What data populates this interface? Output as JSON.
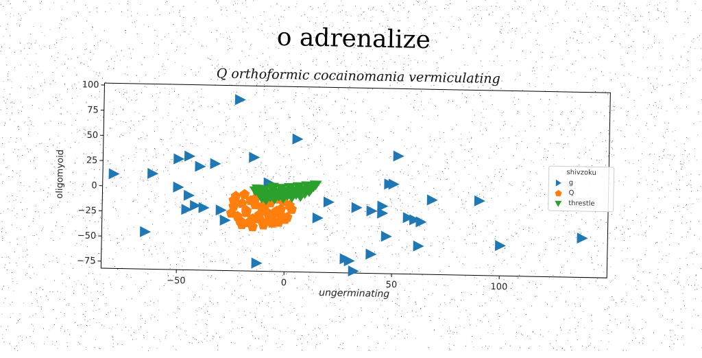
{
  "figure": {
    "suptitle": "o adrenalize"
  },
  "chart_data": {
    "type": "scatter",
    "title": "Q orthoformic cocainomania vermiculating",
    "xlabel": "ungerminating",
    "ylabel": "oligomyoid",
    "xlim": [
      -85,
      150
    ],
    "ylim": [
      -82,
      102
    ],
    "xticks": [
      -50,
      0,
      50,
      100
    ],
    "yticks": [
      100,
      75,
      50,
      25,
      0,
      -25,
      -50,
      -75
    ],
    "grid": false,
    "legend": {
      "title": "shivzoku",
      "position": "right",
      "entries": [
        {
          "label": "g",
          "color": "#1f77b4",
          "marker": "triangle-right"
        },
        {
          "label": "Q",
          "color": "#ff7f0e",
          "marker": "pentagon"
        },
        {
          "label": "threstle",
          "color": "#2ca02c",
          "marker": "triangle-down"
        }
      ]
    },
    "series": [
      {
        "name": "g",
        "color": "#1f77b4",
        "marker": "triangle-right",
        "x": [
          -22,
          5,
          -80,
          -62,
          -50,
          -45,
          -40,
          -33,
          -15,
          -8,
          -50,
          -45,
          -46,
          -42,
          -38,
          -30,
          -28,
          -65,
          -13,
          15,
          20,
          33,
          40,
          45,
          47,
          48,
          50,
          52,
          57,
          60,
          63,
          68,
          90,
          100,
          138,
          28,
          32,
          45,
          62,
          40,
          30
        ],
        "y": [
          88,
          50,
          12,
          13,
          28,
          31,
          21,
          24,
          31,
          6,
          0,
          -8,
          -22,
          -18,
          -20,
          -22,
          -32,
          -45,
          -74,
          -28,
          -12,
          -17,
          -20,
          -22,
          -45,
          7,
          7,
          35,
          -26,
          -28,
          -30,
          -8,
          -8,
          -52,
          -43,
          -68,
          -80,
          -15,
          -54,
          -63,
          -70
        ]
      },
      {
        "name": "Q",
        "color": "#ff7f0e",
        "marker": "pentagon",
        "x": [
          -25,
          -22,
          -18,
          -15,
          -12,
          -10,
          -8,
          -6,
          -4,
          -2,
          0,
          3,
          -24,
          -20,
          -16,
          -14,
          -11,
          -7,
          -4,
          -1,
          2,
          -23,
          -19,
          -13,
          -9,
          -5,
          -21,
          -17,
          -12,
          -8,
          -3,
          1,
          -20,
          -15,
          -6,
          -18,
          -10,
          -2,
          -14,
          -24
        ],
        "y": [
          -25,
          -28,
          -22,
          -30,
          -26,
          -20,
          -24,
          -28,
          -22,
          -26,
          -30,
          -20,
          -18,
          -15,
          -12,
          -16,
          -18,
          -14,
          -10,
          -12,
          -16,
          -8,
          -6,
          -4,
          -10,
          -8,
          -32,
          -34,
          -30,
          -32,
          -33,
          -28,
          -36,
          -38,
          -34,
          -24,
          -36,
          -20,
          -10,
          -12
        ]
      },
      {
        "name": "threstle",
        "color": "#2ca02c",
        "marker": "triangle-down",
        "x": [
          -14,
          -10,
          -6,
          -2,
          2,
          6,
          10,
          14,
          -12,
          -8,
          -4,
          0,
          4,
          8,
          12,
          -11,
          -7,
          -3,
          1,
          5,
          9,
          -9,
          -5,
          -1,
          3,
          7,
          11,
          13,
          -13,
          -6,
          0
        ],
        "y": [
          -2,
          -1,
          0,
          1,
          2,
          3,
          4,
          5,
          -5,
          -4,
          -3,
          -2,
          -1,
          0,
          1,
          -9,
          -8,
          -7,
          -6,
          -5,
          -4,
          -11,
          -10,
          -9,
          -8,
          -7,
          -2,
          3,
          0,
          2,
          -4
        ]
      }
    ]
  }
}
